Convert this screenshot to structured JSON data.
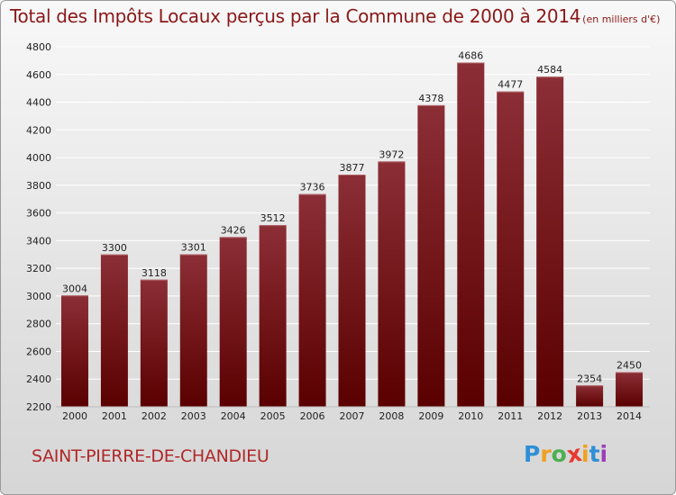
{
  "title": {
    "main": "Total des Impôts Locaux perçus par la Commune de 2000 à 2014",
    "unit": "(en milliers d'€)"
  },
  "commune": "SAINT-PIERRE-DE-CHANDIEU",
  "logo": {
    "letters": [
      "P",
      "r",
      "o",
      "x",
      "i",
      "t",
      "i"
    ],
    "colors": [
      "#2e8fd6",
      "#f0a020",
      "#4caf50",
      "#e8382f",
      "#f0a020",
      "#2e8fd6",
      "#9c3fb8"
    ]
  },
  "colors": {
    "bar_top": "#8c2e36",
    "bar_bottom": "#5a0000",
    "grid": "#ffffff",
    "axis_text": "#222222"
  },
  "chart_data": {
    "type": "bar",
    "title": "Total des Impôts Locaux perçus par la Commune de 2000 à 2014",
    "xlabel": "",
    "ylabel": "",
    "categories": [
      "2000",
      "2001",
      "2002",
      "2003",
      "2004",
      "2005",
      "2006",
      "2007",
      "2008",
      "2009",
      "2010",
      "2011",
      "2012",
      "2013",
      "2014"
    ],
    "values": [
      3004,
      3300,
      3118,
      3301,
      3426,
      3512,
      3736,
      3877,
      3972,
      4378,
      4686,
      4477,
      4584,
      2354,
      2450
    ],
    "ylim": [
      2200,
      4800
    ],
    "yticks": [
      2200,
      2400,
      2600,
      2800,
      3000,
      3200,
      3400,
      3600,
      3800,
      4000,
      4200,
      4400,
      4600,
      4800
    ],
    "grid": true
  }
}
